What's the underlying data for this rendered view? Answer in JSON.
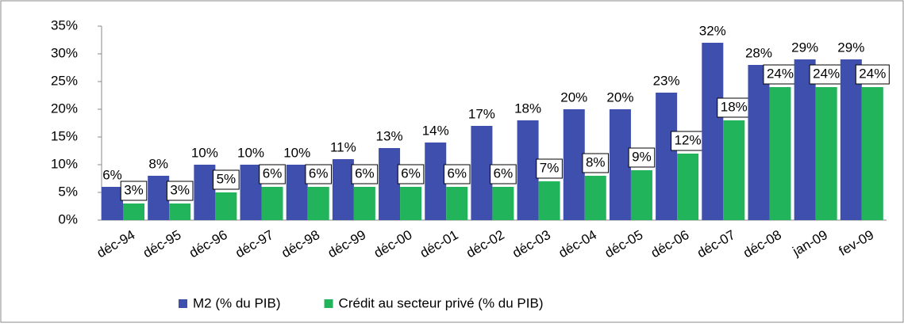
{
  "chart_data": {
    "type": "bar",
    "categories": [
      "déc-94",
      "déc-95",
      "déc-96",
      "déc-97",
      "déc-98",
      "déc-99",
      "déc-00",
      "déc-01",
      "déc-02",
      "déc-03",
      "déc-04",
      "déc-05",
      "déc-06",
      "déc-07",
      "déc-08",
      "jan-09",
      "fev-09"
    ],
    "series": [
      {
        "name": "M2 (% du PIB)",
        "color": "#3f4fad",
        "values": [
          6,
          8,
          10,
          10,
          10,
          11,
          13,
          14,
          17,
          18,
          20,
          20,
          23,
          32,
          28,
          29,
          29
        ],
        "value_labels": [
          "6%",
          "8%",
          "10%",
          "10%",
          "10%",
          "11%",
          "13%",
          "14%",
          "17%",
          "18%",
          "20%",
          "20%",
          "23%",
          "32%",
          "28%",
          "29%",
          "29%"
        ]
      },
      {
        "name": "Crédit au secteur privé (% du PIB)",
        "color": "#22b45a",
        "values": [
          3,
          3,
          5,
          6,
          6,
          6,
          6,
          6,
          6,
          7,
          8,
          9,
          12,
          18,
          24,
          24,
          24
        ],
        "value_labels": [
          "3%",
          "3%",
          "5%",
          "6%",
          "6%",
          "6%",
          "6%",
          "6%",
          "6%",
          "7%",
          "8%",
          "9%",
          "12%",
          "18%",
          "24%",
          "24%",
          "24%"
        ]
      }
    ],
    "ylim": [
      0,
      35
    ],
    "yticks": [
      {
        "value": 0,
        "label": "0%"
      },
      {
        "value": 5,
        "label": "5%"
      },
      {
        "value": 10,
        "label": "10%"
      },
      {
        "value": 15,
        "label": "15%"
      },
      {
        "value": 20,
        "label": "20%"
      },
      {
        "value": 25,
        "label": "25%"
      },
      {
        "value": 30,
        "label": "30%"
      },
      {
        "value": 35,
        "label": "35%"
      }
    ],
    "grid": false,
    "legend": "bottom"
  }
}
